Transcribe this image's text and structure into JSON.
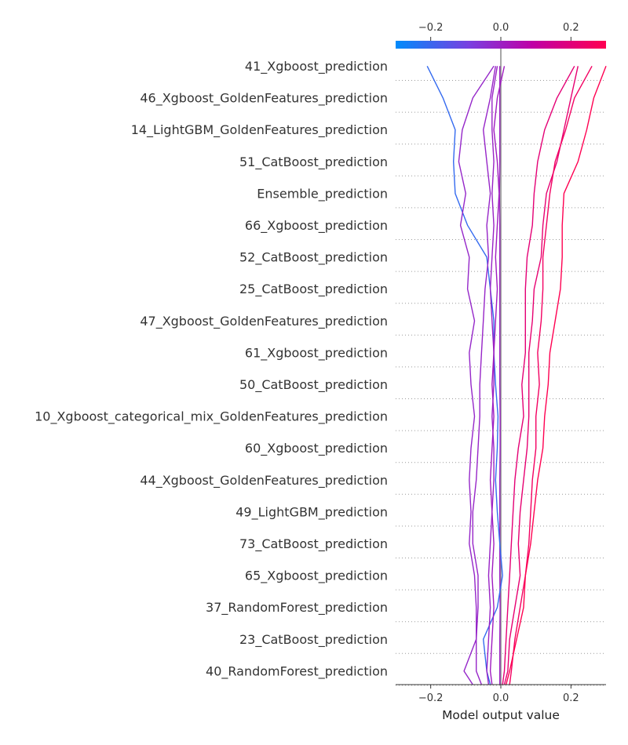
{
  "chart_data": {
    "type": "line",
    "subtype": "shap-decision-plot",
    "xlabel": "Model output value",
    "xlim": [
      -0.3,
      0.3
    ],
    "x_ticks": [
      {
        "value": -0.2,
        "label": "−0.2"
      },
      {
        "value": 0.0,
        "label": "0.0"
      },
      {
        "value": 0.2,
        "label": "0.2"
      }
    ],
    "base_value": 0.0,
    "colorbar": {
      "placement": "top",
      "range": [
        -0.3,
        0.3
      ],
      "colors": [
        "#008bfb",
        "#7a3fe0",
        "#bf00a6",
        "#ff0051"
      ]
    },
    "grid": "dotted-horizontal",
    "features": [
      "40_RandomForest_prediction",
      "23_CatBoost_prediction",
      "37_RandomForest_prediction",
      "65_Xgboost_prediction",
      "73_CatBoost_prediction",
      "49_LightGBM_prediction",
      "44_Xgboost_GoldenFeatures_prediction",
      "60_Xgboost_prediction",
      "10_Xgboost_categorical_mix_GoldenFeatures_prediction",
      "50_CatBoost_prediction",
      "61_Xgboost_prediction",
      "47_Xgboost_GoldenFeatures_prediction",
      "25_CatBoost_prediction",
      "52_CatBoost_prediction",
      "66_Xgboost_prediction",
      "Ensemble_prediction",
      "51_CatBoost_prediction",
      "14_LightGBM_GoldenFeatures_prediction",
      "46_Xgboost_GoldenFeatures_prediction",
      "41_Xgboost_prediction"
    ],
    "series": [
      {
        "values": [
          -0.003,
          -0.003,
          -0.003,
          -0.002,
          -0.003,
          -0.003,
          -0.003,
          -0.003,
          -0.002,
          -0.002,
          -0.003,
          -0.003,
          -0.003,
          -0.003,
          -0.003,
          -0.003,
          -0.004,
          -0.003,
          -0.003,
          -0.003,
          -0.003
        ]
      },
      {
        "values": [
          -0.03,
          -0.04,
          -0.05,
          -0.01,
          0.005,
          -0.003,
          -0.01,
          -0.015,
          -0.01,
          -0.008,
          -0.015,
          -0.02,
          -0.02,
          -0.03,
          -0.04,
          -0.095,
          -0.13,
          -0.135,
          -0.13,
          -0.165,
          -0.21
        ]
      },
      {
        "values": [
          -0.08,
          -0.105,
          -0.07,
          -0.07,
          -0.075,
          -0.09,
          -0.085,
          -0.09,
          -0.085,
          -0.075,
          -0.085,
          -0.09,
          -0.075,
          -0.095,
          -0.09,
          -0.115,
          -0.1,
          -0.12,
          -0.11,
          -0.08,
          -0.02
        ]
      },
      {
        "values": [
          -0.055,
          -0.07,
          -0.07,
          -0.065,
          -0.065,
          -0.08,
          -0.08,
          -0.07,
          -0.065,
          -0.06,
          -0.06,
          -0.055,
          -0.05,
          -0.045,
          -0.035,
          -0.04,
          -0.03,
          -0.04,
          -0.05,
          -0.03,
          -0.015
        ]
      },
      {
        "values": [
          -0.035,
          -0.04,
          -0.035,
          -0.03,
          -0.035,
          -0.03,
          -0.025,
          -0.02,
          -0.02,
          -0.025,
          -0.02,
          -0.02,
          -0.025,
          -0.03,
          -0.025,
          -0.02,
          -0.025,
          -0.02,
          -0.025,
          -0.025,
          -0.01
        ]
      },
      {
        "values": [
          -0.025,
          -0.03,
          -0.025,
          -0.02,
          -0.025,
          -0.02,
          -0.025,
          -0.03,
          -0.025,
          -0.02,
          -0.025,
          -0.02,
          -0.015,
          -0.01,
          -0.015,
          -0.01,
          -0.005,
          -0.01,
          -0.02,
          -0.01,
          0.01
        ]
      },
      {
        "values": [
          0.005,
          0.01,
          0.015,
          0.02,
          0.025,
          0.03,
          0.035,
          0.04,
          0.05,
          0.065,
          0.06,
          0.07,
          0.07,
          0.07,
          0.075,
          0.09,
          0.095,
          0.105,
          0.125,
          0.16,
          0.21
        ]
      },
      {
        "values": [
          0.01,
          0.02,
          0.025,
          0.04,
          0.055,
          0.05,
          0.055,
          0.065,
          0.075,
          0.08,
          0.08,
          0.08,
          0.09,
          0.095,
          0.115,
          0.12,
          0.13,
          0.16,
          0.18,
          0.2,
          0.22
        ]
      },
      {
        "values": [
          0.025,
          0.03,
          0.04,
          0.055,
          0.07,
          0.08,
          0.085,
          0.09,
          0.1,
          0.1,
          0.11,
          0.105,
          0.115,
          0.12,
          0.12,
          0.13,
          0.14,
          0.155,
          0.185,
          0.21,
          0.26
        ]
      },
      {
        "values": [
          0.015,
          0.025,
          0.045,
          0.065,
          0.07,
          0.085,
          0.095,
          0.105,
          0.12,
          0.125,
          0.135,
          0.14,
          0.155,
          0.17,
          0.175,
          0.175,
          0.18,
          0.22,
          0.245,
          0.265,
          0.3
        ]
      }
    ]
  }
}
